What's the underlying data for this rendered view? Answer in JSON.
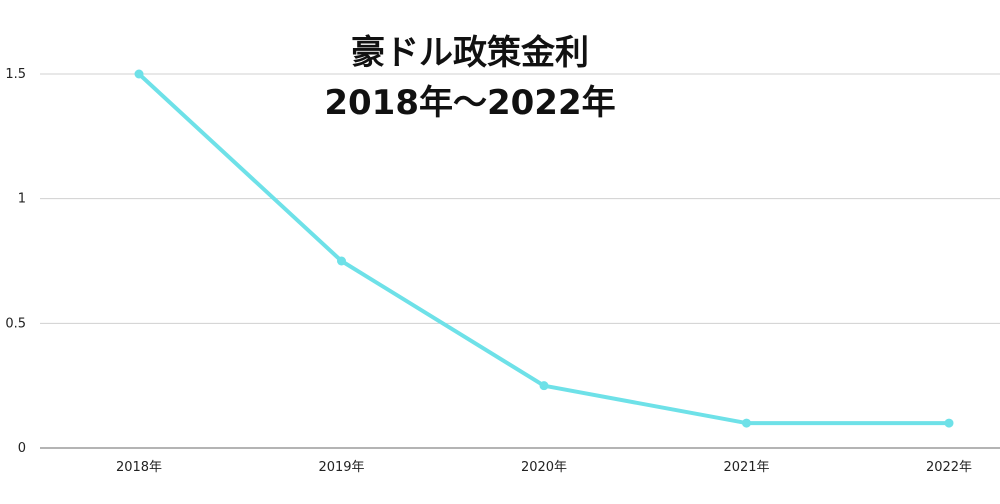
{
  "chart_data": {
    "type": "line",
    "title_lines": [
      "豪ドル政策金利",
      "2018年～2022年"
    ],
    "categories": [
      "2018年",
      "2019年",
      "2020年",
      "2021年",
      "2022年"
    ],
    "series": [
      {
        "values": [
          1.5,
          0.75,
          0.25,
          0.1,
          0.1
        ]
      }
    ],
    "y_ticks": [
      "0",
      "0.5",
      "1",
      "1.5"
    ],
    "y_tick_values": [
      0,
      0.5,
      1,
      1.5
    ],
    "ylim": [
      0,
      1.5
    ],
    "grid": true,
    "line_color": "#6ee1e8",
    "grid_color": "#d0d0d0",
    "axis_color": "#888888"
  }
}
